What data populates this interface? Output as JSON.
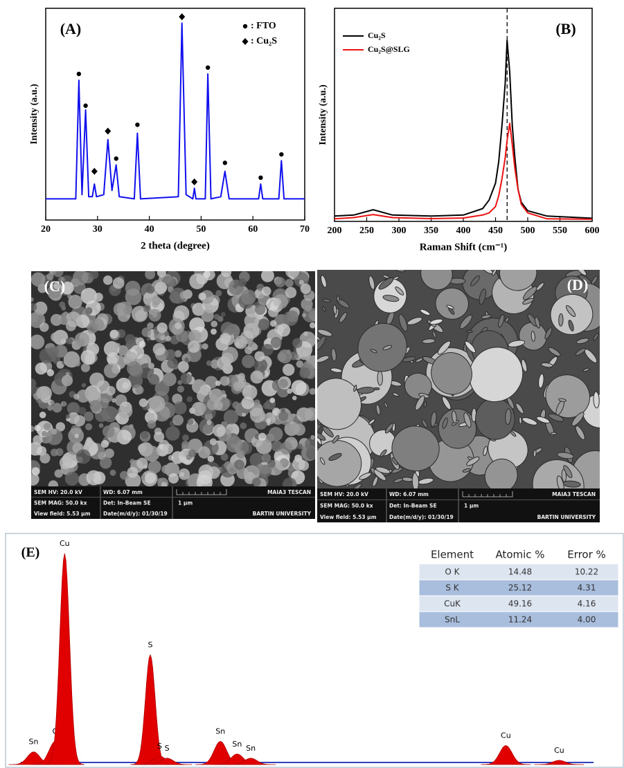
{
  "chart_data": [
    {
      "type": "line",
      "panel_label": "(A)",
      "xlabel": "2 theta (degree)",
      "ylabel": "Intensity (a.u.)",
      "xlim": [
        20,
        70
      ],
      "xticks": [
        20,
        30,
        40,
        50,
        60,
        70
      ],
      "ylim": [
        0,
        100
      ],
      "x": [
        20,
        25.8,
        26.4,
        27.0,
        27.7,
        28.3,
        29.0,
        29.4,
        29.8,
        31.2,
        32.0,
        32.8,
        33.6,
        34.2,
        37.1,
        37.7,
        38.3,
        45.6,
        46.3,
        47.1,
        48.4,
        48.7,
        49.0,
        50.8,
        51.3,
        51.9,
        53.8,
        54.6,
        55.4,
        61.1,
        61.5,
        61.9,
        65.0,
        65.5,
        66.0,
        70
      ],
      "series": [
        {
          "color": "#1010ee",
          "values": [
            10,
            10,
            66,
            12,
            52,
            11,
            11,
            17,
            11,
            12,
            38,
            14,
            26,
            11,
            10,
            41,
            10,
            11,
            93,
            12,
            10,
            15,
            10,
            10,
            69,
            10,
            11,
            23,
            10,
            10,
            17,
            10,
            10,
            28,
            10,
            10
          ]
        }
      ],
      "annotations": [
        {
          "x": 26.4,
          "y": 69,
          "marker": "circle"
        },
        {
          "x": 27.7,
          "y": 54,
          "marker": "circle"
        },
        {
          "x": 29.4,
          "y": 23,
          "marker": "diamond"
        },
        {
          "x": 32.0,
          "y": 42,
          "marker": "diamond"
        },
        {
          "x": 33.6,
          "y": 29,
          "marker": "circle"
        },
        {
          "x": 37.7,
          "y": 45,
          "marker": "circle"
        },
        {
          "x": 46.3,
          "y": 96,
          "marker": "diamond"
        },
        {
          "x": 48.7,
          "y": 18,
          "marker": "diamond"
        },
        {
          "x": 51.3,
          "y": 72,
          "marker": "circle"
        },
        {
          "x": 54.6,
          "y": 27,
          "marker": "circle"
        },
        {
          "x": 61.5,
          "y": 20,
          "marker": "circle"
        },
        {
          "x": 65.5,
          "y": 31,
          "marker": "circle"
        }
      ],
      "legend": [
        {
          "marker": "circle",
          "label": ": FTO"
        },
        {
          "marker": "diamond",
          "label": ": Cu₂S"
        }
      ]
    },
    {
      "type": "line",
      "panel_label": "(B)",
      "xlabel": "Raman Shift (cm⁻¹)",
      "ylabel": "Intensity (a.u.)",
      "xlim": [
        200,
        600
      ],
      "xticks": [
        200,
        250,
        300,
        350,
        400,
        450,
        500,
        550,
        600
      ],
      "ylim": [
        0,
        100
      ],
      "reference_x": 468,
      "x": [
        200,
        230,
        260,
        290,
        350,
        400,
        430,
        440,
        450,
        455,
        460,
        465,
        468,
        472,
        476,
        480,
        485,
        490,
        500,
        530,
        600
      ],
      "series": [
        {
          "name": "Cu₂S",
          "color": "#000000",
          "values": [
            2.5,
            3,
            5.5,
            3,
            2.5,
            3,
            6,
            10,
            18,
            28,
            45,
            65,
            85,
            70,
            45,
            30,
            15,
            9,
            5,
            2.5,
            1.5
          ]
        },
        {
          "name": "Cu₂S@SLG",
          "color": "#ee1111",
          "values": [
            1.2,
            1.8,
            3.2,
            1.8,
            1.3,
            1.6,
            3,
            4,
            7,
            12,
            20,
            30,
            38,
            46,
            36,
            25,
            15,
            8,
            4,
            1.2,
            1.0
          ]
        }
      ]
    },
    {
      "type": "area",
      "panel_label": "(E)",
      "color": "#e00000",
      "xlim": [
        0,
        9.9
      ],
      "ylim": [
        0,
        100
      ],
      "peaks": [
        {
          "label": "Sn",
          "x": 0.43,
          "height": 6
        },
        {
          "label": "O",
          "x": 0.78,
          "height": 11
        },
        {
          "label": "Cu",
          "x": 0.93,
          "height": 100
        },
        {
          "label": "S",
          "x": 2.31,
          "height": 52
        },
        {
          "label": "S",
          "x": 2.46,
          "height": 4
        },
        {
          "label": "S",
          "x": 2.58,
          "height": 3
        },
        {
          "label": "Sn",
          "x": 3.44,
          "height": 11
        },
        {
          "label": "Sn",
          "x": 3.71,
          "height": 5
        },
        {
          "label": "Sn",
          "x": 3.93,
          "height": 3
        },
        {
          "label": "Cu",
          "x": 8.04,
          "height": 9
        },
        {
          "label": "Cu",
          "x": 8.9,
          "height": 2
        }
      ],
      "table": {
        "header": [
          "Element",
          "Atomic %",
          "Error %"
        ],
        "rows": [
          [
            "O K",
            "14.48",
            "10.22"
          ],
          [
            "S K",
            "25.12",
            "4.31"
          ],
          [
            "CuK",
            "49.16",
            "4.16"
          ],
          [
            "SnL",
            "11.24",
            "4.00"
          ]
        ]
      }
    }
  ],
  "sem_images": [
    {
      "panel_label": "(C)",
      "info": [
        [
          "SEM HV: 20.0 kV",
          "WD: 6.07 mm",
          "MAIA3 TESCAN"
        ],
        [
          "SEM MAG: 50.0 kx",
          "Det: In-Beam SE",
          "1 μm"
        ],
        [
          "View field: 5.53 μm",
          "Date(m/d/y): 01/30/19",
          "BARTIN UNIVERSITY"
        ]
      ]
    },
    {
      "panel_label": "(D)",
      "info": [
        [
          "SEM HV: 20.0 kV",
          "WD: 6.07 mm",
          "MAIA3 TESCAN"
        ],
        [
          "SEM MAG: 50.0 kx",
          "Det: In-Beam SE",
          "1 μm"
        ],
        [
          "View field: 5.53 μm",
          "Date(m/d/y): 01/30/19",
          "BARTIN UNIVERSITY"
        ]
      ]
    }
  ]
}
